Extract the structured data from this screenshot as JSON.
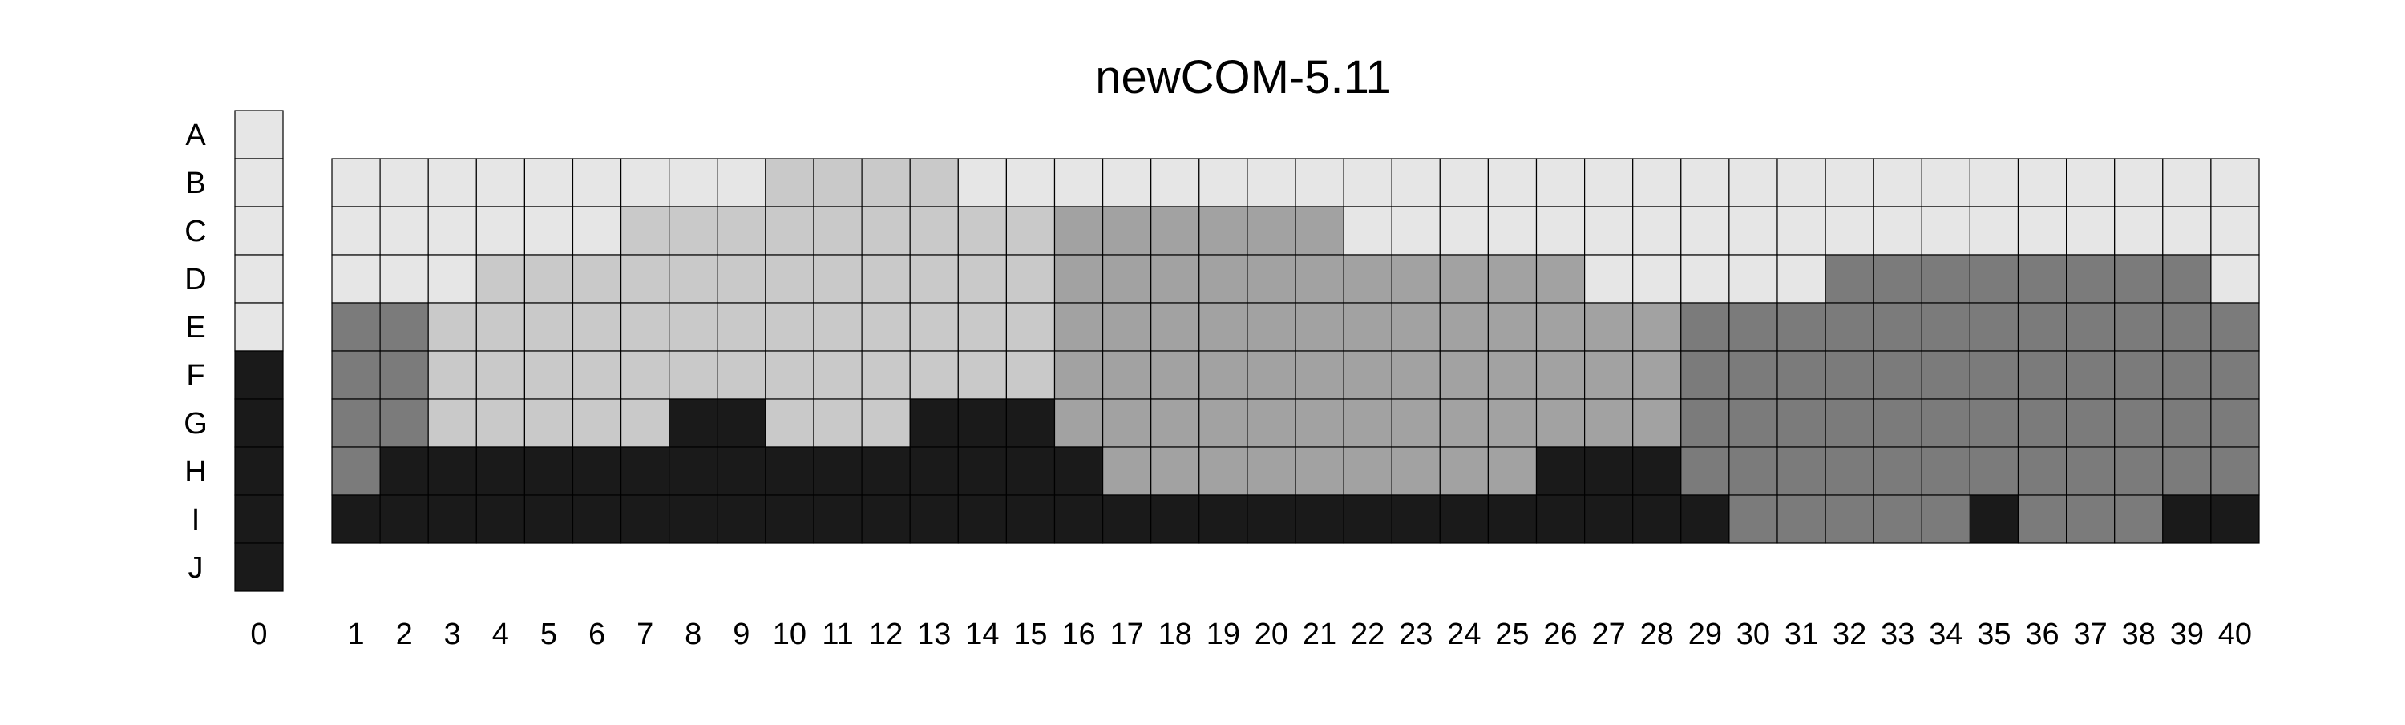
{
  "chart_data": {
    "type": "heatmap",
    "title": "newCOM-5.11",
    "xlabel": "",
    "ylabel": "",
    "rows": [
      "A",
      "B",
      "C",
      "D",
      "E",
      "F",
      "G",
      "H",
      "I",
      "J"
    ],
    "legend_column": {
      "label": "0",
      "values": [
        0,
        0,
        0,
        0,
        0,
        4,
        4,
        4,
        4,
        4
      ]
    },
    "columns": [
      "1",
      "2",
      "3",
      "4",
      "5",
      "6",
      "7",
      "8",
      "9",
      "10",
      "11",
      "12",
      "13",
      "14",
      "15",
      "16",
      "17",
      "18",
      "19",
      "20",
      "21",
      "22",
      "23",
      "24",
      "25",
      "26",
      "27",
      "28",
      "29",
      "30",
      "31",
      "32",
      "33",
      "34",
      "35",
      "36",
      "37",
      "38",
      "39",
      "40"
    ],
    "matrix_rows": [
      "B",
      "C",
      "D",
      "E",
      "F",
      "G",
      "H",
      "I"
    ],
    "matrix": [
      [
        0,
        0,
        0,
        0,
        0,
        0,
        0,
        0,
        0,
        1,
        1,
        1,
        1,
        0,
        0,
        0,
        0,
        0,
        0,
        0,
        0,
        0,
        0,
        0,
        0,
        0,
        0,
        0,
        0,
        0,
        0,
        0,
        0,
        0,
        0,
        0,
        0,
        0,
        0,
        0
      ],
      [
        0,
        0,
        0,
        0,
        0,
        0,
        1,
        1,
        1,
        1,
        1,
        1,
        1,
        1,
        1,
        2,
        2,
        2,
        2,
        2,
        2,
        0,
        0,
        0,
        0,
        0,
        0,
        0,
        0,
        0,
        0,
        0,
        0,
        0,
        0,
        0,
        0,
        0,
        0,
        0
      ],
      [
        0,
        0,
        0,
        1,
        1,
        1,
        1,
        1,
        1,
        1,
        1,
        1,
        1,
        1,
        1,
        2,
        2,
        2,
        2,
        2,
        2,
        2,
        2,
        2,
        2,
        2,
        0,
        0,
        0,
        0,
        0,
        3,
        3,
        3,
        3,
        3,
        3,
        3,
        3,
        0
      ],
      [
        3,
        3,
        1,
        1,
        1,
        1,
        1,
        1,
        1,
        1,
        1,
        1,
        1,
        1,
        1,
        2,
        2,
        2,
        2,
        2,
        2,
        2,
        2,
        2,
        2,
        2,
        2,
        2,
        3,
        3,
        3,
        3,
        3,
        3,
        3,
        3,
        3,
        3,
        3,
        3
      ],
      [
        3,
        3,
        1,
        1,
        1,
        1,
        1,
        1,
        1,
        1,
        1,
        1,
        1,
        1,
        1,
        2,
        2,
        2,
        2,
        2,
        2,
        2,
        2,
        2,
        2,
        2,
        2,
        2,
        3,
        3,
        3,
        3,
        3,
        3,
        3,
        3,
        3,
        3,
        3,
        3
      ],
      [
        3,
        3,
        1,
        1,
        1,
        1,
        1,
        4,
        4,
        1,
        1,
        1,
        4,
        4,
        4,
        2,
        2,
        2,
        2,
        2,
        2,
        2,
        2,
        2,
        2,
        2,
        2,
        2,
        3,
        3,
        3,
        3,
        3,
        3,
        3,
        3,
        3,
        3,
        3,
        3
      ],
      [
        3,
        4,
        4,
        4,
        4,
        4,
        4,
        4,
        4,
        4,
        4,
        4,
        4,
        4,
        4,
        4,
        2,
        2,
        2,
        2,
        2,
        2,
        2,
        2,
        2,
        4,
        4,
        4,
        3,
        3,
        3,
        3,
        3,
        3,
        3,
        3,
        3,
        3,
        3,
        3
      ],
      [
        4,
        4,
        4,
        4,
        4,
        4,
        4,
        4,
        4,
        4,
        4,
        4,
        4,
        4,
        4,
        4,
        4,
        4,
        4,
        4,
        4,
        4,
        4,
        4,
        4,
        4,
        4,
        4,
        4,
        3,
        3,
        3,
        3,
        3,
        4,
        3,
        3,
        3,
        4,
        4
      ]
    ],
    "color_levels": [
      "#e6e6e6",
      "#c9c9c9",
      "#a2a2a2",
      "#7b7b7b",
      "#1a1a1a"
    ],
    "grid": true
  }
}
